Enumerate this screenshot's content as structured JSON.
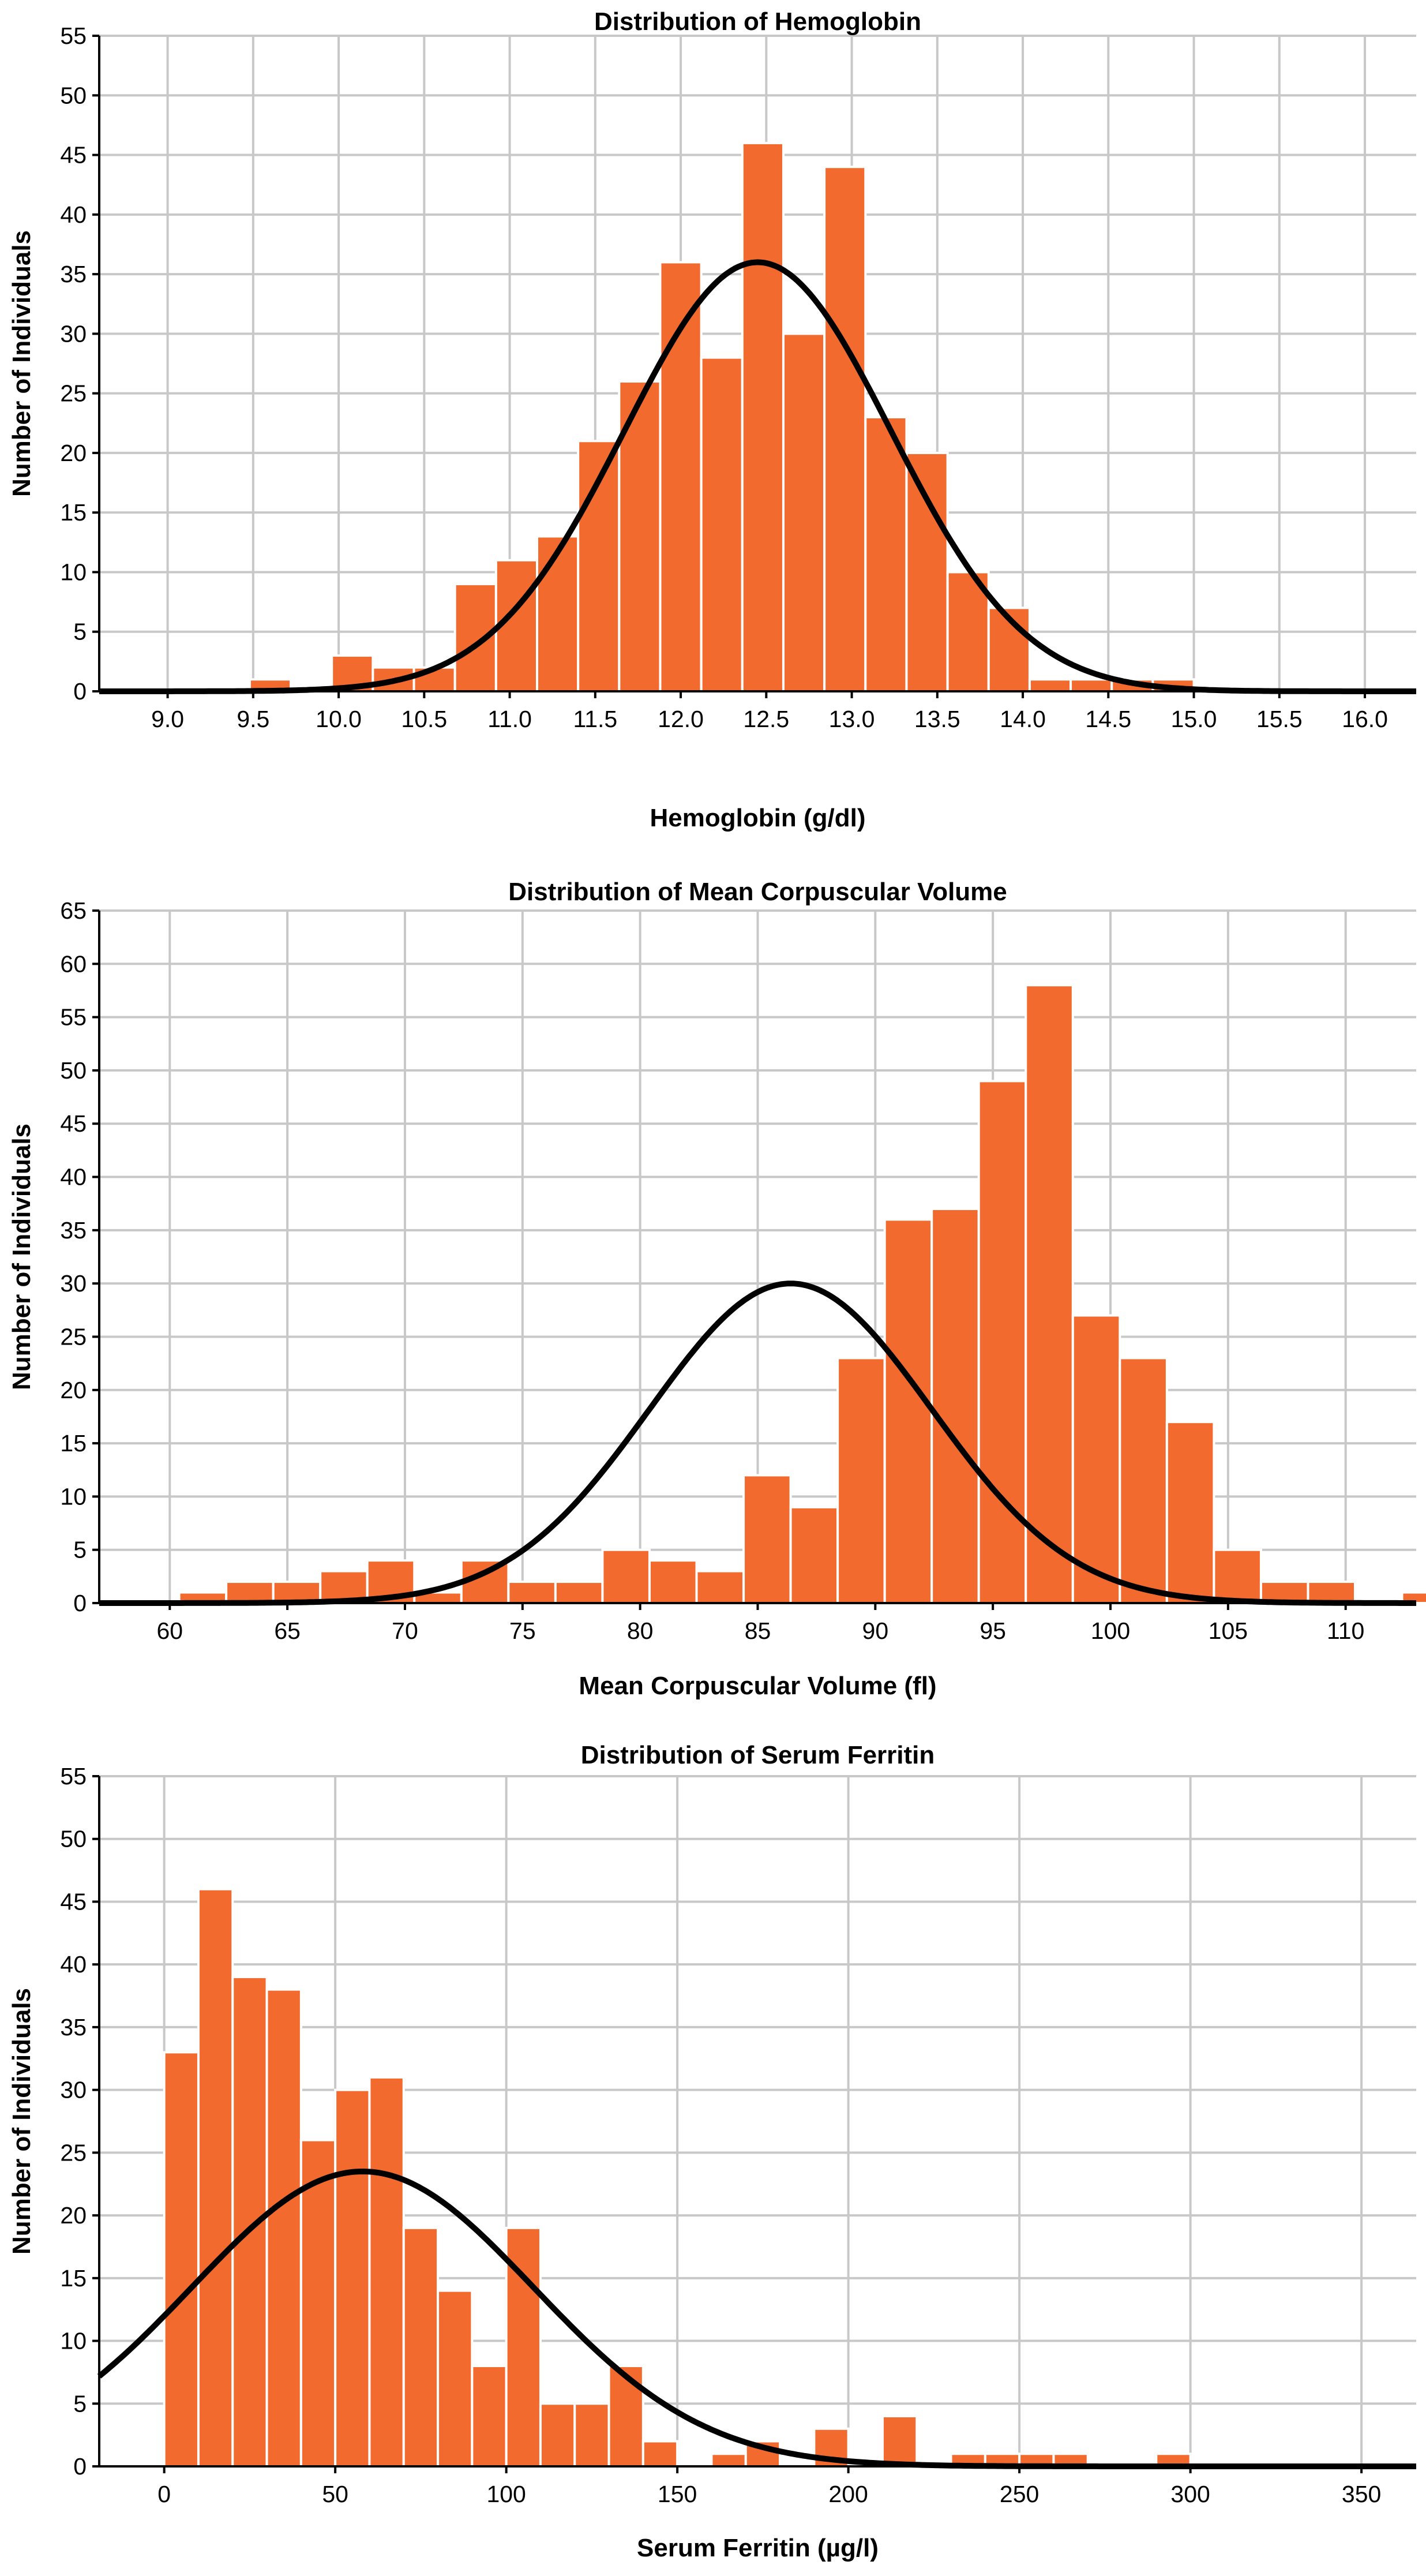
{
  "colors": {
    "bar": "#f26a2e",
    "curve": "#000000",
    "grid": "#c8c8c8"
  },
  "chart_data": [
    {
      "type": "bar",
      "title": "Distribution of Hemoglobin",
      "xlabel": "Hemoglobin (g/dl)",
      "ylabel": "Number of Individuals",
      "xlim": [
        8.6,
        16.3
      ],
      "ylim": [
        0,
        55
      ],
      "xticks": [
        "9.0",
        "9.5",
        "10.0",
        "10.5",
        "11.0",
        "11.5",
        "12.0",
        "12.5",
        "13.0",
        "13.5",
        "14.0",
        "14.5",
        "15.0",
        "15.5",
        "16.0"
      ],
      "yticks": [
        0,
        5,
        10,
        15,
        20,
        25,
        30,
        35,
        40,
        45,
        50,
        55
      ],
      "bin_width": 0.24,
      "bins": [
        {
          "start": 9.48,
          "count": 1
        },
        {
          "start": 9.72,
          "count": 0
        },
        {
          "start": 9.96,
          "count": 3
        },
        {
          "start": 10.2,
          "count": 2
        },
        {
          "start": 10.44,
          "count": 2
        },
        {
          "start": 10.68,
          "count": 9
        },
        {
          "start": 10.92,
          "count": 11
        },
        {
          "start": 11.16,
          "count": 13
        },
        {
          "start": 11.4,
          "count": 21
        },
        {
          "start": 11.64,
          "count": 26
        },
        {
          "start": 11.88,
          "count": 36
        },
        {
          "start": 12.12,
          "count": 28
        },
        {
          "start": 12.36,
          "count": 46
        },
        {
          "start": 12.6,
          "count": 30
        },
        {
          "start": 12.84,
          "count": 44
        },
        {
          "start": 13.08,
          "count": 23
        },
        {
          "start": 13.32,
          "count": 20
        },
        {
          "start": 13.56,
          "count": 10
        },
        {
          "start": 13.8,
          "count": 7
        },
        {
          "start": 14.04,
          "count": 1
        },
        {
          "start": 14.28,
          "count": 1
        },
        {
          "start": 14.52,
          "count": 1
        },
        {
          "start": 14.76,
          "count": 1
        }
      ],
      "normal_curve": {
        "mean": 12.45,
        "sd": 0.78,
        "peak": 36
      }
    },
    {
      "type": "bar",
      "title": "Distribution of Mean Corpuscular Volume",
      "xlabel": "Mean Corpuscular Volume (fl)",
      "ylabel": "Number of Individuals",
      "xlim": [
        57,
        113
      ],
      "ylim": [
        0,
        65
      ],
      "xticks": [
        "60",
        "65",
        "70",
        "75",
        "80",
        "85",
        "90",
        "95",
        "100",
        "105",
        "110"
      ],
      "yticks": [
        0,
        5,
        10,
        15,
        20,
        25,
        30,
        35,
        40,
        45,
        50,
        55,
        60,
        65
      ],
      "bin_width": 2,
      "bins": [
        {
          "start": 60.4,
          "count": 1
        },
        {
          "start": 62.4,
          "count": 2
        },
        {
          "start": 64.4,
          "count": 2
        },
        {
          "start": 66.4,
          "count": 3
        },
        {
          "start": 68.4,
          "count": 4
        },
        {
          "start": 70.4,
          "count": 1
        },
        {
          "start": 72.4,
          "count": 4
        },
        {
          "start": 74.4,
          "count": 2
        },
        {
          "start": 76.4,
          "count": 2
        },
        {
          "start": 78.4,
          "count": 5
        },
        {
          "start": 80.4,
          "count": 4
        },
        {
          "start": 82.4,
          "count": 3
        },
        {
          "start": 84.4,
          "count": 12
        },
        {
          "start": 86.4,
          "count": 9
        },
        {
          "start": 88.4,
          "count": 23
        },
        {
          "start": 90.4,
          "count": 36
        },
        {
          "start": 92.4,
          "count": 37
        },
        {
          "start": 94.4,
          "count": 49
        },
        {
          "start": 96.4,
          "count": 58
        },
        {
          "start": 98.4,
          "count": 27
        },
        {
          "start": 100.4,
          "count": 23
        },
        {
          "start": 102.4,
          "count": 17
        },
        {
          "start": 104.4,
          "count": 5
        },
        {
          "start": 106.4,
          "count": 2
        },
        {
          "start": 108.4,
          "count": 2
        },
        {
          "start": 110.4,
          "count": 0
        },
        {
          "start": 112.4,
          "count": 1
        }
      ],
      "normal_curve": {
        "mean": 86.4,
        "sd": 6.0,
        "peak": 30
      }
    },
    {
      "type": "bar",
      "title": "Distribution of Serum Ferritin",
      "xlabel": "Serum Ferritin (µg/l)",
      "ylabel": "Number of Individuals",
      "xlim": [
        -19,
        366
      ],
      "ylim": [
        0,
        55
      ],
      "xticks": [
        "0",
        "50",
        "100",
        "150",
        "200",
        "250",
        "300",
        "350"
      ],
      "yticks": [
        0,
        5,
        10,
        15,
        20,
        25,
        30,
        35,
        40,
        45,
        50,
        55
      ],
      "bin_width": 10,
      "bins": [
        {
          "start": 0,
          "count": 33
        },
        {
          "start": 10,
          "count": 46
        },
        {
          "start": 20,
          "count": 39
        },
        {
          "start": 30,
          "count": 38
        },
        {
          "start": 40,
          "count": 26
        },
        {
          "start": 50,
          "count": 30
        },
        {
          "start": 60,
          "count": 31
        },
        {
          "start": 70,
          "count": 19
        },
        {
          "start": 80,
          "count": 14
        },
        {
          "start": 90,
          "count": 8
        },
        {
          "start": 100,
          "count": 19
        },
        {
          "start": 110,
          "count": 5
        },
        {
          "start": 120,
          "count": 5
        },
        {
          "start": 130,
          "count": 8
        },
        {
          "start": 140,
          "count": 2
        },
        {
          "start": 150,
          "count": 0
        },
        {
          "start": 160,
          "count": 1
        },
        {
          "start": 170,
          "count": 2
        },
        {
          "start": 180,
          "count": 0
        },
        {
          "start": 190,
          "count": 3
        },
        {
          "start": 200,
          "count": 0
        },
        {
          "start": 210,
          "count": 4
        },
        {
          "start": 220,
          "count": 0
        },
        {
          "start": 230,
          "count": 1
        },
        {
          "start": 240,
          "count": 1
        },
        {
          "start": 250,
          "count": 1
        },
        {
          "start": 260,
          "count": 1
        },
        {
          "start": 270,
          "count": 0
        },
        {
          "start": 280,
          "count": 0
        },
        {
          "start": 290,
          "count": 1
        }
      ],
      "normal_curve": {
        "mean": 58,
        "sd": 50,
        "peak": 23.5
      }
    }
  ]
}
